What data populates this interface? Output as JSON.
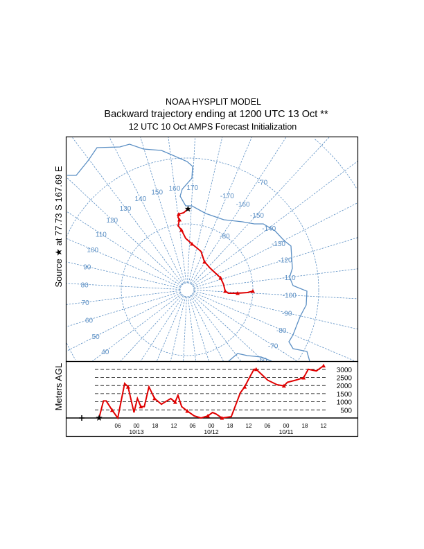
{
  "title": {
    "line1": "NOAA HYSPLIT MODEL",
    "line2": "Backward trajectory ending at 1200 UTC 13 Oct **",
    "line3": "12 UTC 10 Oct    AMPS  Forecast Initialization"
  },
  "source_label": "Source ★ at  77.73 S  167.69 E",
  "yaxis_label": "Meters AGL",
  "map": {
    "longitude_labels": [
      "40",
      "50",
      "60",
      "70",
      "80",
      "90",
      "100",
      "110",
      "120",
      "130",
      "140",
      "150",
      "160",
      "170",
      "-170",
      "-160",
      "-150",
      "-140",
      "-130",
      "-120",
      "-110",
      "-100",
      "-90",
      "-80",
      "-70",
      "-60"
    ],
    "latitude_labels": [
      "-80",
      "-70"
    ],
    "colors": {
      "grid": "#5b8fc4",
      "trajectory": "#e00000"
    }
  },
  "chart_data": {
    "type": "line",
    "source": {
      "lat": -77.73,
      "lon": 167.69
    },
    "trajectory": {
      "lat": [
        -77.73,
        -78.3,
        -78.45,
        -78.9,
        -79.3,
        -80.2,
        -80.9,
        -82.2,
        -83.0,
        -83.8,
        -85.0,
        -85.2,
        -84.6,
        -84.4,
        -84.2,
        -83.7,
        -82.3,
        -80.8,
        -80.0
      ],
      "lon": [
        167.69,
        164.4,
        160.7,
        159.9,
        160.8,
        159.0,
        161.7,
        165.5,
        173.1,
        -173.0,
        -161.0,
        -146.2,
        -122.5,
        -111.6,
        -100.9,
        -98.2,
        -99.1,
        -100.4,
        -101.8
      ]
    },
    "height_profile": {
      "hours_back": [
        0,
        1.4,
        2.3,
        4.2,
        6,
        8.2,
        9.3,
        11.2,
        12.3,
        13.4,
        14.5,
        16,
        17.8,
        20,
        23,
        24.4,
        25.3,
        26.5,
        28.3,
        30.5,
        32.7,
        34.9,
        36.4,
        37.5,
        39.4,
        42.4,
        45.3,
        46.7,
        48.2,
        49.7,
        50.4,
        54.1,
        57.1,
        59.3,
        60.4,
        63,
        65.6,
        67.1,
        69.7,
        72
      ],
      "meters_agl": [
        0,
        1050,
        1050,
        480,
        0,
        2130,
        1920,
        340,
        1200,
        700,
        700,
        1920,
        1200,
        850,
        1200,
        980,
        1400,
        700,
        430,
        130,
        0,
        130,
        340,
        250,
        0,
        80,
        1550,
        1920,
        2480,
        3000,
        3000,
        2330,
        2050,
        1980,
        2200,
        2330,
        2480,
        3000,
        2900,
        3220
      ]
    },
    "y_ticks": [
      "500",
      "1000",
      "1500",
      "2000",
      "2500",
      "3000"
    ],
    "y_tick_values": [
      500,
      1000,
      1500,
      2000,
      2500,
      3000
    ],
    "x_ticks": [
      "06",
      "00",
      "18",
      "12",
      "06",
      "00",
      "18",
      "12",
      "06",
      "00",
      "18",
      "12"
    ],
    "x_tick_hours_back": [
      6,
      12,
      18,
      24,
      30,
      36,
      42,
      48,
      54,
      60,
      66,
      72
    ],
    "dates": [
      "10/13",
      "10/12",
      "10/11"
    ],
    "date_hours_back": [
      12,
      36,
      60
    ],
    "ylim": [
      0,
      3000
    ],
    "xlim_hours_back": [
      0,
      72
    ]
  }
}
